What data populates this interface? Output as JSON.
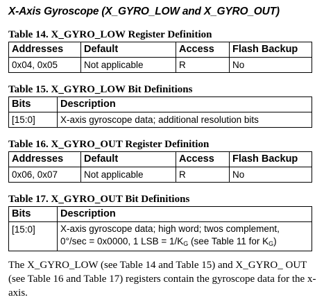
{
  "heading": "X-Axis Gyroscope (X_GYRO_LOW and X_GYRO_OUT)",
  "table14": {
    "caption": "Table 14. X_GYRO_LOW Register Definition",
    "headers": [
      "Addresses",
      "Default",
      "Access",
      "Flash Backup"
    ],
    "row": [
      "0x04, 0x05",
      "Not applicable",
      "R",
      "No"
    ]
  },
  "table15": {
    "caption": "Table 15. X_GYRO_LOW Bit Definitions",
    "headers": [
      "Bits",
      "Description"
    ],
    "row": [
      "[15:0]",
      "X-axis gyroscope data; additional resolution bits"
    ]
  },
  "table16": {
    "caption": "Table 16. X_GYRO_OUT Register Definition",
    "headers": [
      "Addresses",
      "Default",
      "Access",
      "Flash Backup"
    ],
    "row": [
      "0x06, 0x07",
      "Not applicable",
      "R",
      "No"
    ]
  },
  "table17": {
    "caption": "Table 17. X_GYRO_OUT Bit Definitions",
    "headers": [
      "Bits",
      "Description"
    ],
    "bits": "[15:0]",
    "desc_line1": "X-axis gyroscope data; high word; twos complement,",
    "desc_line2_a": "0°/sec = 0x0000, 1 LSB = 1/K",
    "desc_sub1": "G",
    "desc_line2_b": " (see Table 11 for K",
    "desc_sub2": "G",
    "desc_line2_c": ")"
  },
  "paragraph": "The X_GYRO_LOW (see Table 14 and Table 15) and X_GYRO_ OUT (see Table 16 and Table 17) registers contain the gyroscope data for the x-axis."
}
